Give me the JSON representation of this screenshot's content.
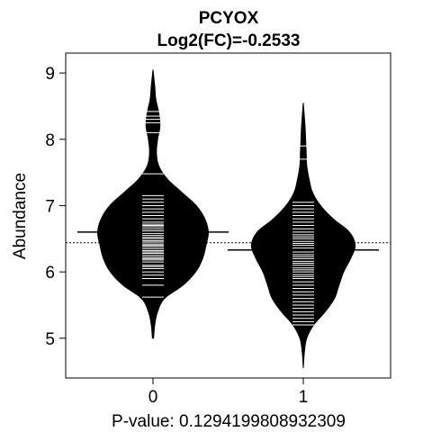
{
  "chart_data": {
    "type": "beanplot",
    "title": "PCYOX",
    "subtitle": "Log2(FC)=-0.2533",
    "xlabel": "P-value: 0.1294199808932309",
    "ylabel": "Abundance",
    "categories": [
      "0",
      "1"
    ],
    "ylim": [
      4.4,
      9.3
    ],
    "yticks": [
      "5",
      "6",
      "7",
      "8",
      "9"
    ],
    "overall_mean": 6.44,
    "groups": [
      {
        "name": "0",
        "mean": 6.6,
        "range": [
          5.0,
          9.05
        ],
        "density": [
          [
            5.0,
            0.01
          ],
          [
            5.2,
            0.03
          ],
          [
            5.4,
            0.08
          ],
          [
            5.6,
            0.2
          ],
          [
            5.8,
            0.52
          ],
          [
            6.0,
            0.74
          ],
          [
            6.2,
            0.86
          ],
          [
            6.4,
            0.92
          ],
          [
            6.6,
            0.96
          ],
          [
            6.8,
            0.9
          ],
          [
            7.0,
            0.75
          ],
          [
            7.2,
            0.5
          ],
          [
            7.4,
            0.25
          ],
          [
            7.6,
            0.1
          ],
          [
            7.8,
            0.06
          ],
          [
            8.0,
            0.08
          ],
          [
            8.2,
            0.12
          ],
          [
            8.4,
            0.1
          ],
          [
            8.6,
            0.05
          ],
          [
            8.8,
            0.03
          ],
          [
            9.05,
            0.0
          ]
        ],
        "points": [
          5.62,
          5.8,
          5.9,
          5.95,
          6.0,
          6.05,
          6.08,
          6.1,
          6.15,
          6.18,
          6.2,
          6.22,
          6.25,
          6.28,
          6.3,
          6.32,
          6.35,
          6.38,
          6.4,
          6.42,
          6.45,
          6.47,
          6.5,
          6.52,
          6.55,
          6.58,
          6.6,
          6.62,
          6.65,
          6.68,
          6.7,
          6.72,
          6.75,
          6.8,
          6.85,
          6.9,
          6.95,
          7.0,
          7.05,
          7.1,
          7.15,
          7.48,
          8.1,
          8.25,
          8.3,
          8.35,
          8.42
        ]
      },
      {
        "name": "1",
        "mean": 6.33,
        "range": [
          4.55,
          8.55
        ],
        "density": [
          [
            4.55,
            0.0
          ],
          [
            4.8,
            0.02
          ],
          [
            5.0,
            0.06
          ],
          [
            5.2,
            0.18
          ],
          [
            5.4,
            0.38
          ],
          [
            5.6,
            0.54
          ],
          [
            5.8,
            0.62
          ],
          [
            6.0,
            0.7
          ],
          [
            6.2,
            0.82
          ],
          [
            6.4,
            0.9
          ],
          [
            6.6,
            0.8
          ],
          [
            6.8,
            0.52
          ],
          [
            7.0,
            0.3
          ],
          [
            7.2,
            0.16
          ],
          [
            7.4,
            0.1
          ],
          [
            7.6,
            0.06
          ],
          [
            7.8,
            0.05
          ],
          [
            8.0,
            0.04
          ],
          [
            8.2,
            0.03
          ],
          [
            8.55,
            0.0
          ]
        ],
        "points": [
          5.2,
          5.25,
          5.3,
          5.35,
          5.4,
          5.45,
          5.5,
          5.55,
          5.6,
          5.65,
          5.7,
          5.75,
          5.8,
          5.85,
          5.9,
          5.93,
          5.96,
          6.0,
          6.03,
          6.06,
          6.1,
          6.13,
          6.16,
          6.2,
          6.23,
          6.26,
          6.3,
          6.33,
          6.36,
          6.4,
          6.43,
          6.46,
          6.5,
          6.53,
          6.56,
          6.6,
          6.65,
          6.7,
          6.75,
          6.8,
          6.85,
          6.9,
          6.95,
          7.0,
          7.05,
          7.7,
          7.9
        ]
      }
    ]
  }
}
